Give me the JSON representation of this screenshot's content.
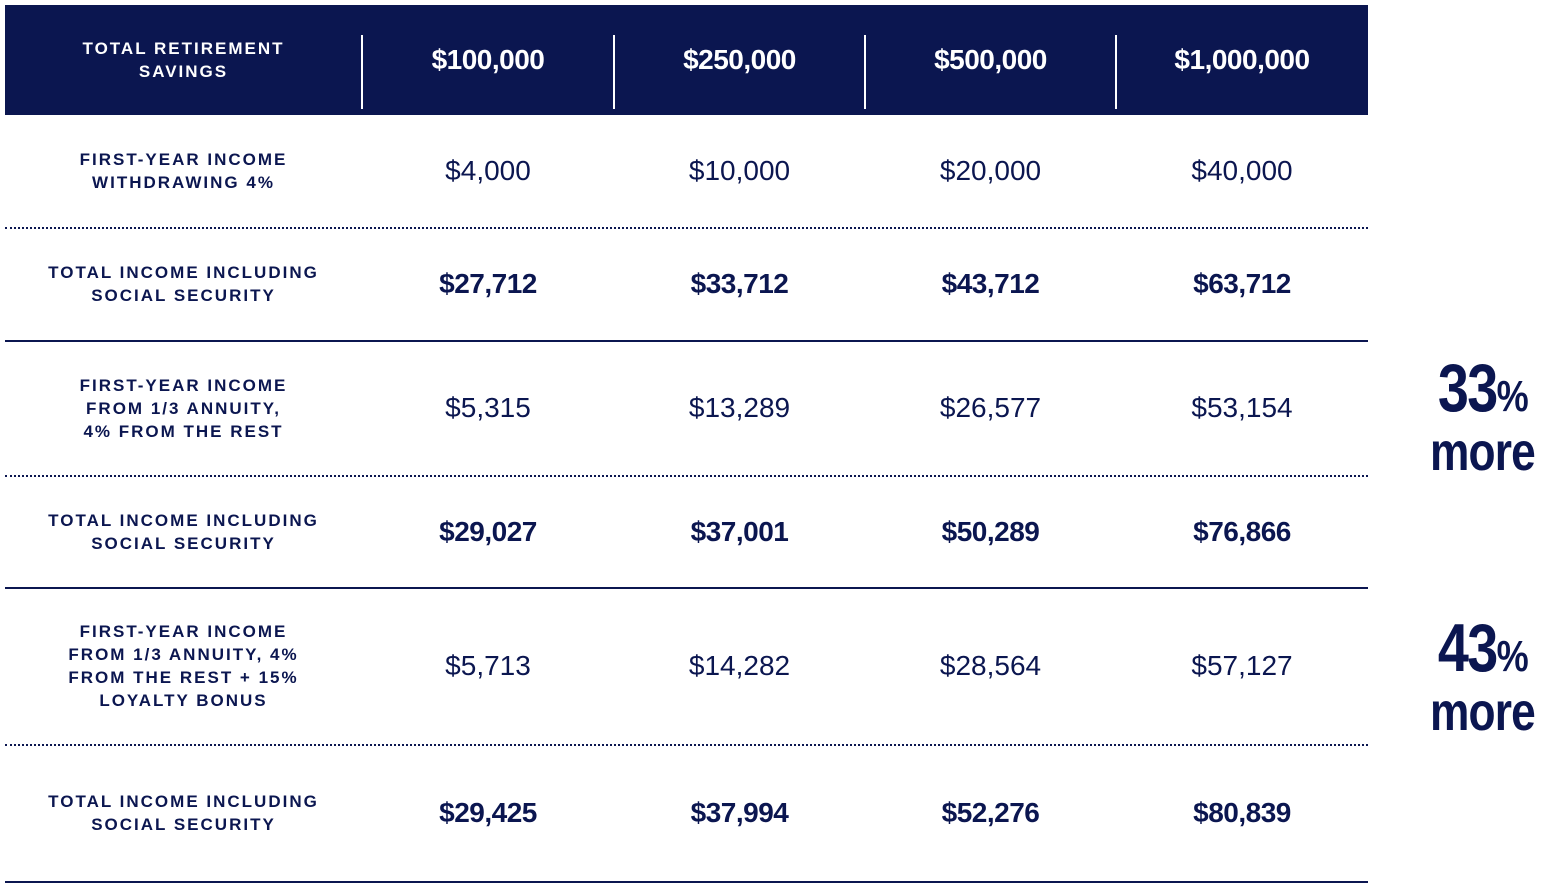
{
  "header": {
    "label": "TOTAL RETIREMENT SAVINGS",
    "columns": [
      "$100,000",
      "$250,000",
      "$500,000",
      "$1,000,000"
    ]
  },
  "rows": [
    {
      "label": "FIRST-YEAR INCOME WITHDRAWING 4%",
      "values": [
        "$4,000",
        "$10,000",
        "$20,000",
        "$40,000"
      ],
      "bold": false
    },
    {
      "label": "TOTAL INCOME INCLUDING SOCIAL SECURITY",
      "values": [
        "$27,712",
        "$33,712",
        "$43,712",
        "$63,712"
      ],
      "bold": true
    },
    {
      "label": "FIRST-YEAR INCOME FROM 1/3 ANNUITY, 4% FROM THE REST",
      "values": [
        "$5,315",
        "$13,289",
        "$26,577",
        "$53,154"
      ],
      "bold": false
    },
    {
      "label": "TOTAL INCOME INCLUDING SOCIAL SECURITY",
      "values": [
        "$29,027",
        "$37,001",
        "$50,289",
        "$76,866"
      ],
      "bold": true
    },
    {
      "label": "FIRST-YEAR INCOME FROM 1/3 ANNUITY, 4% FROM THE REST + 15% LOYALTY BONUS",
      "values": [
        "$5,713",
        "$14,282",
        "$28,564",
        "$57,127"
      ],
      "bold": false
    },
    {
      "label": "TOTAL INCOME INCLUDING SOCIAL SECURITY",
      "values": [
        "$29,425",
        "$37,994",
        "$52,276",
        "$80,839"
      ],
      "bold": true
    }
  ],
  "callouts": [
    {
      "number": "33",
      "unit": "%",
      "text": "more"
    },
    {
      "number": "43",
      "unit": "%",
      "text": "more"
    }
  ],
  "colors": {
    "navy": "#0b1650",
    "background": "#ffffff"
  }
}
